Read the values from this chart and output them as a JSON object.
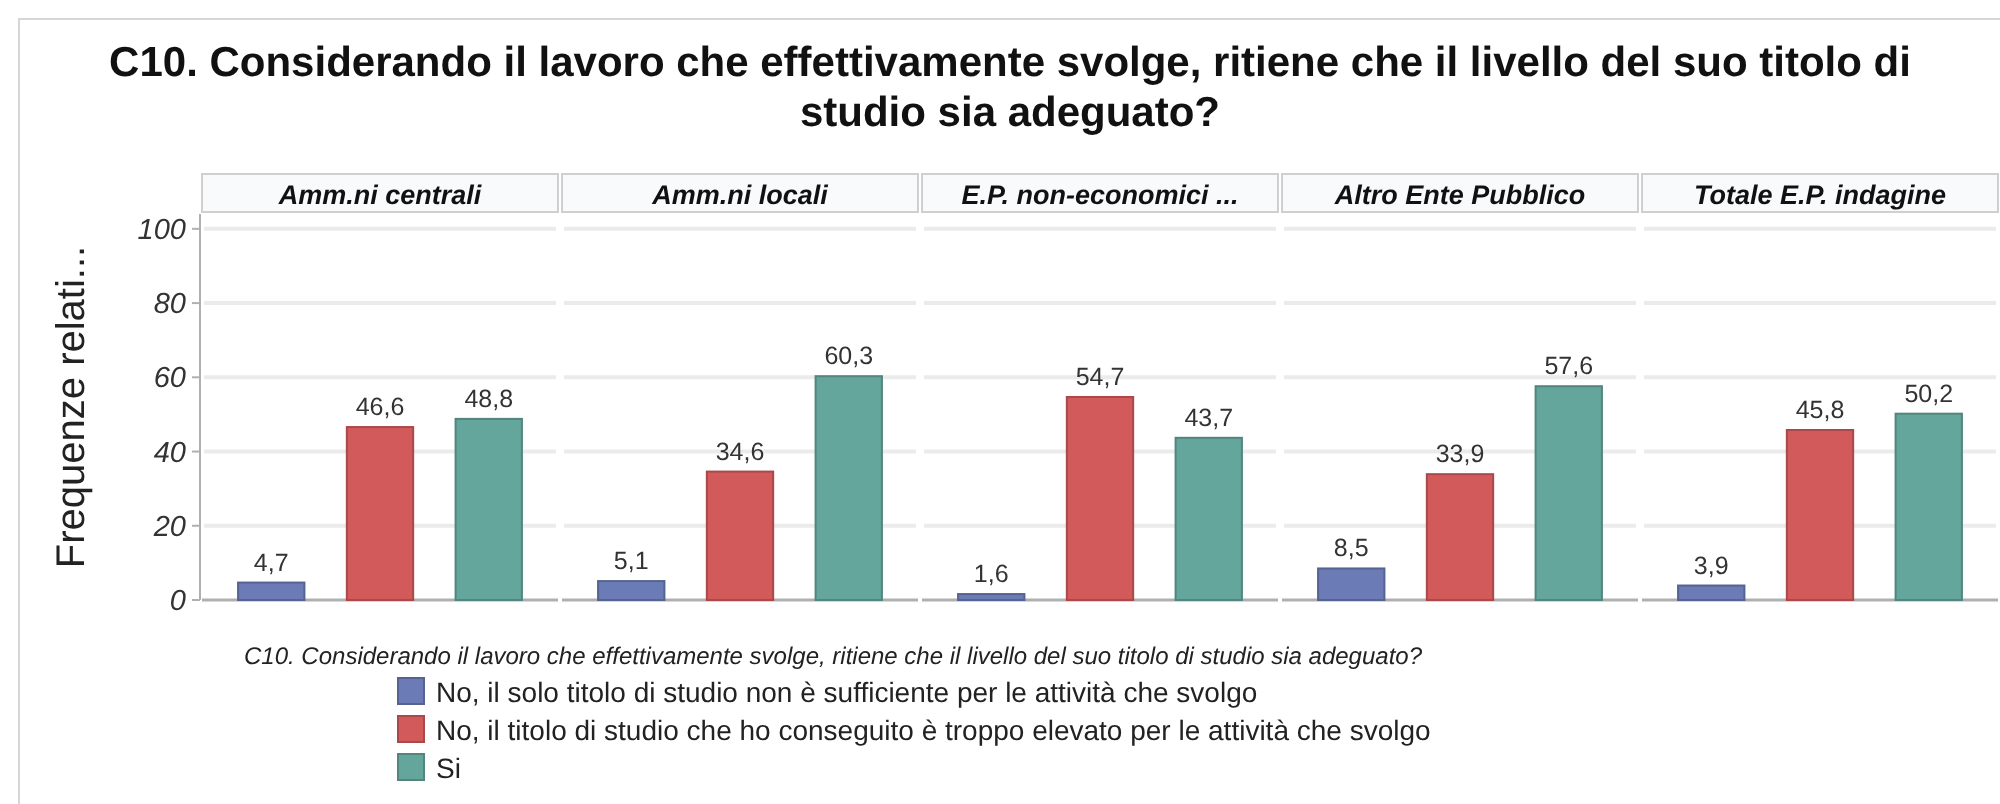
{
  "chart_data": {
    "type": "bar",
    "title": "C10. Considerando il lavoro che effettivamente svolge, ritiene che il livello del suo titolo di studio sia adeguato?",
    "ylabel": "Frequenze relati...",
    "legend_title": "C10. Considerando il lavoro che effettivamente svolge, ritiene che il livello del suo titolo di studio sia adeguato?",
    "categories": [
      "Amm.ni centrali",
      "Amm.ni locali",
      "E.P. non-economici ...",
      "Altro Ente Pubblico",
      "Totale E.P. indagine"
    ],
    "series": [
      {
        "name": "No, il solo titolo di studio non è sufficiente per le attività che svolgo",
        "color": "#6b7bb5",
        "values": [
          4.7,
          5.1,
          1.6,
          8.5,
          3.9
        ],
        "value_labels": [
          "4,7",
          "5,1",
          "1,6",
          "8,5",
          "3,9"
        ]
      },
      {
        "name": "No, il titolo di studio che ho conseguito è troppo elevato per le attività che svolgo",
        "color": "#d25a5a",
        "values": [
          46.6,
          34.6,
          54.7,
          33.9,
          45.8
        ],
        "value_labels": [
          "46,6",
          "34,6",
          "54,7",
          "33,9",
          "45,8"
        ]
      },
      {
        "name": "Si",
        "color": "#64a59c",
        "values": [
          48.8,
          60.3,
          43.7,
          57.6,
          50.2
        ],
        "value_labels": [
          "48,8",
          "60,3",
          "43,7",
          "57,6",
          "50,2"
        ]
      }
    ],
    "ylim": [
      0,
      104
    ],
    "yticks": [
      0,
      20,
      40,
      60,
      80,
      100
    ],
    "grid": "y",
    "legend": "bottom"
  }
}
